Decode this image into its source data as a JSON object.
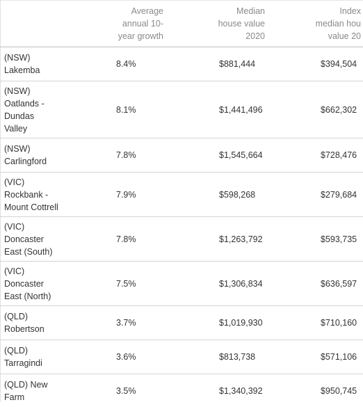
{
  "table": {
    "header": [
      [],
      [
        "Average",
        "annual 10-",
        "year growth"
      ],
      [
        "Median",
        "house value",
        "2020"
      ],
      [
        "Index",
        "median hou",
        "value 20"
      ]
    ],
    "rows": [
      [
        [
          "(NSW)",
          "Lakemba"
        ],
        "8.4%",
        "$881,444",
        "$394,504"
      ],
      [
        [
          "(NSW)",
          "Oatlands -",
          "Dundas",
          "Valley"
        ],
        "8.1%",
        "$1,441,496",
        "$662,302"
      ],
      [
        [
          "(NSW)",
          "Carlingford"
        ],
        "7.8%",
        "$1,545,664",
        "$728,476"
      ],
      [
        [
          "(VIC)",
          "Rockbank -",
          "Mount Cottrell"
        ],
        "7.9%",
        "$598,268",
        "$279,684"
      ],
      [
        [
          "(VIC)",
          "Doncaster",
          "East (South)"
        ],
        "7.8%",
        "$1,263,792",
        "$593,735"
      ],
      [
        [
          "(VIC)",
          "Doncaster",
          "East (North)"
        ],
        "7.5%",
        "$1,306,834",
        "$636,597"
      ],
      [
        [
          "(QLD)",
          "Robertson"
        ],
        "3.7%",
        "$1,019,930",
        "$710,160"
      ],
      [
        [
          "(QLD)",
          "Tarragindi"
        ],
        "3.6%",
        "$813,738",
        "$571,106"
      ],
      [
        [
          "(QLD) New",
          "Farm"
        ],
        "3.5%",
        "$1,340,392",
        "$950,745"
      ]
    ]
  }
}
